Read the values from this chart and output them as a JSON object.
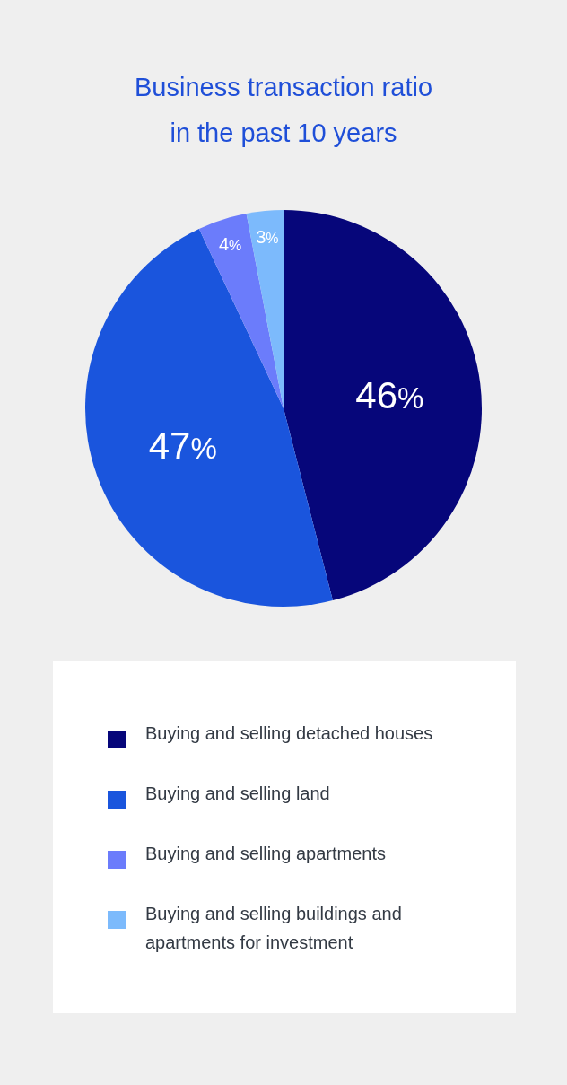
{
  "chart_data": {
    "type": "pie",
    "title": "Business transaction ratio in the past 10 years",
    "categories": [
      "Buying and selling detached houses",
      "Buying and selling land",
      "Buying and selling apartments",
      "Buying and selling buildings and apartments for investment"
    ],
    "values": [
      46,
      47,
      4,
      3
    ],
    "value_labels": [
      "46%",
      "47%",
      "4%",
      "3%"
    ],
    "colors": [
      "#06067a",
      "#1a55dd",
      "#6b7cfb",
      "#7cbafc"
    ],
    "legend": "bottom"
  }
}
